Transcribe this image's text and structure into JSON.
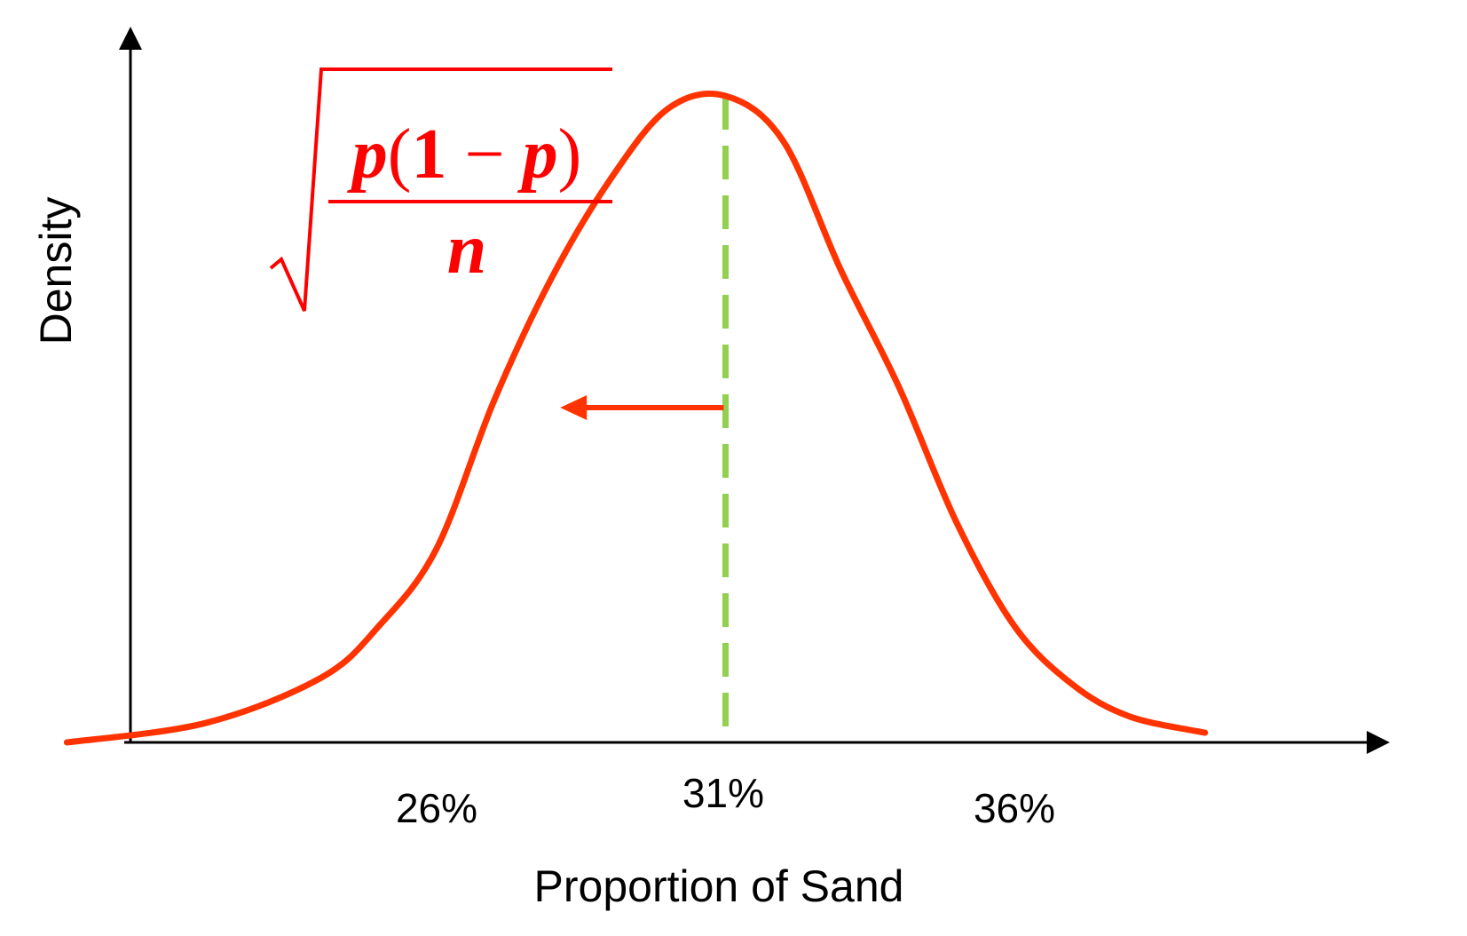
{
  "chart_data": {
    "type": "line",
    "xlabel": "Proportion of Sand",
    "ylabel": "Density",
    "x_ticks": [
      "26%",
      "31%",
      "36%"
    ],
    "xlim": [
      0.195,
      0.39
    ],
    "ylim": [
      0,
      1.08
    ],
    "series": [
      {
        "x": [
          0.196,
          0.22,
          0.24,
          0.25,
          0.26,
          0.27,
          0.28,
          0.29,
          0.3,
          0.31,
          0.32,
          0.33,
          0.34,
          0.35,
          0.36,
          0.37,
          0.38,
          0.393
        ],
        "y": [
          0.0,
          0.03,
          0.1,
          0.18,
          0.3,
          0.53,
          0.72,
          0.87,
          0.98,
          1.0,
          0.93,
          0.73,
          0.55,
          0.34,
          0.18,
          0.09,
          0.04,
          0.015
        ]
      }
    ],
    "center": {
      "x": 0.31,
      "label": "31%"
    },
    "annotation": {
      "type": "std-arrow",
      "from_x": 0.31,
      "to_x": 0.28
    },
    "formula": {
      "numerator": [
        "p",
        "(",
        "1",
        " − ",
        "p",
        ")"
      ],
      "denominator": "n"
    },
    "colors": {
      "curve": "#ff3300",
      "center_line": "#92d050",
      "formula": "#ff0000",
      "axis": "#000000"
    }
  }
}
